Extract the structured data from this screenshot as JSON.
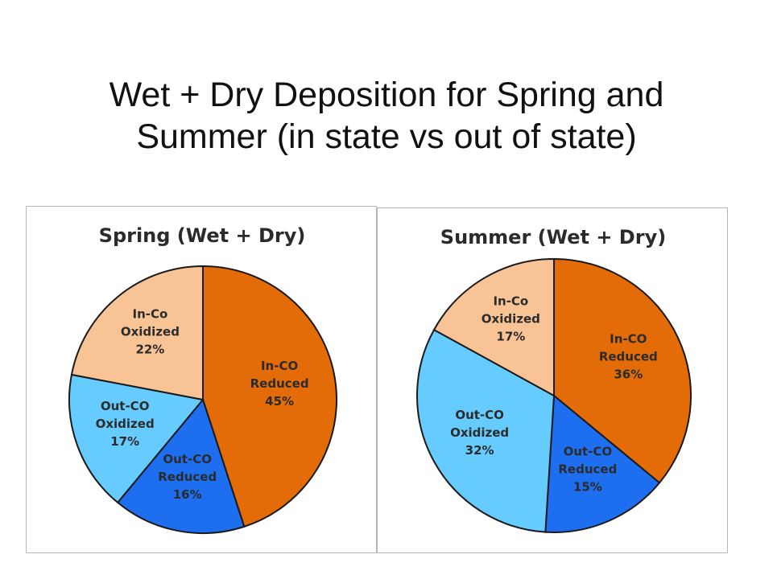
{
  "slide": {
    "title_line1": "Wet + Dry Deposition for Spring and",
    "title_line2": "Summer (in state vs out of state)"
  },
  "chart_data": [
    {
      "type": "pie",
      "title": "Spring (Wet + Dry)",
      "slices": [
        {
          "label": [
            "In-CO",
            "Reduced",
            "45%"
          ],
          "value": 45,
          "color": "#e36c09"
        },
        {
          "label": [
            "Out-CO",
            "Reduced",
            "16%"
          ],
          "value": 16,
          "color": "#1e6ef0"
        },
        {
          "label": [
            "Out-CO",
            "Oxidized",
            "17%"
          ],
          "value": 17,
          "color": "#66ccff"
        },
        {
          "label": [
            "In-Co",
            "Oxidized",
            "22%"
          ],
          "value": 22,
          "color": "#f8c496"
        }
      ]
    },
    {
      "type": "pie",
      "title": "Summer (Wet + Dry)",
      "slices": [
        {
          "label": [
            "In-CO",
            "Reduced",
            "36%"
          ],
          "value": 36,
          "color": "#e36c09"
        },
        {
          "label": [
            "Out-CO",
            "Reduced",
            "15%"
          ],
          "value": 15,
          "color": "#1e6ef0"
        },
        {
          "label": [
            "Out-CO",
            "Oxidized",
            "32%"
          ],
          "value": 32,
          "color": "#66ccff"
        },
        {
          "label": [
            "In-Co",
            "Oxidized",
            "17%"
          ],
          "value": 17,
          "color": "#f8c496"
        }
      ]
    }
  ]
}
